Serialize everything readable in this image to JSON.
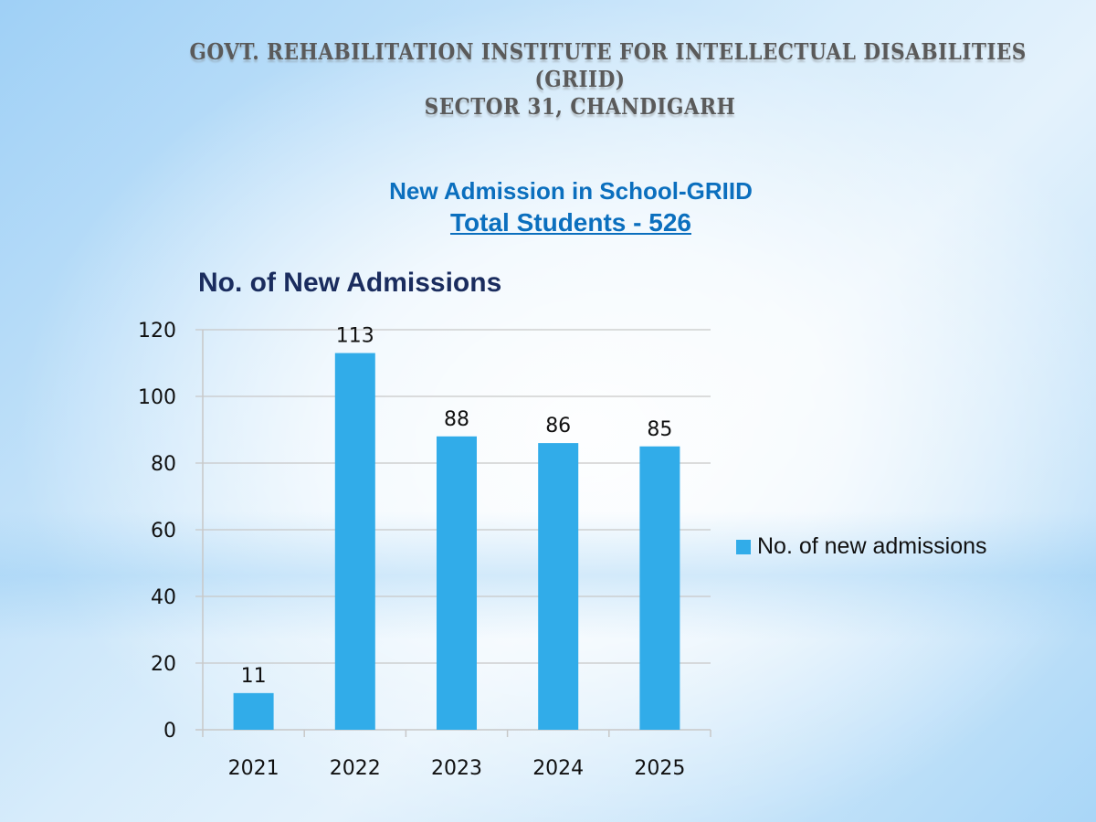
{
  "header": {
    "line1": "GOVT. REHABILITATION INSTITUTE FOR INTELLECTUAL DISABILITIES",
    "line2": "(GRIID)",
    "line3": "SECTOR 31, CHANDIGARH"
  },
  "subtitle": {
    "line1": "New Admission in School-GRIID",
    "line2": "Total Students - 526"
  },
  "colors": {
    "bar": "#31ace9",
    "grid": "#c8c8c8"
  },
  "chart_data": {
    "type": "bar",
    "title": "No. of New Admissions",
    "categories": [
      "2021",
      "2022",
      "2023",
      "2024",
      "2025"
    ],
    "series": [
      {
        "name": "No. of new admissions",
        "values": [
          11,
          113,
          88,
          86,
          85
        ]
      }
    ],
    "data_labels": [
      "11",
      "113",
      "88",
      "86",
      "85"
    ],
    "xlabel": "",
    "ylabel": "",
    "ylim": [
      0,
      120
    ],
    "yticks": [
      0,
      20,
      40,
      60,
      80,
      100,
      120
    ],
    "ytick_labels": [
      "0",
      "20",
      "40",
      "60",
      "80",
      "100",
      "120"
    ],
    "grid": true,
    "legend": "right"
  }
}
